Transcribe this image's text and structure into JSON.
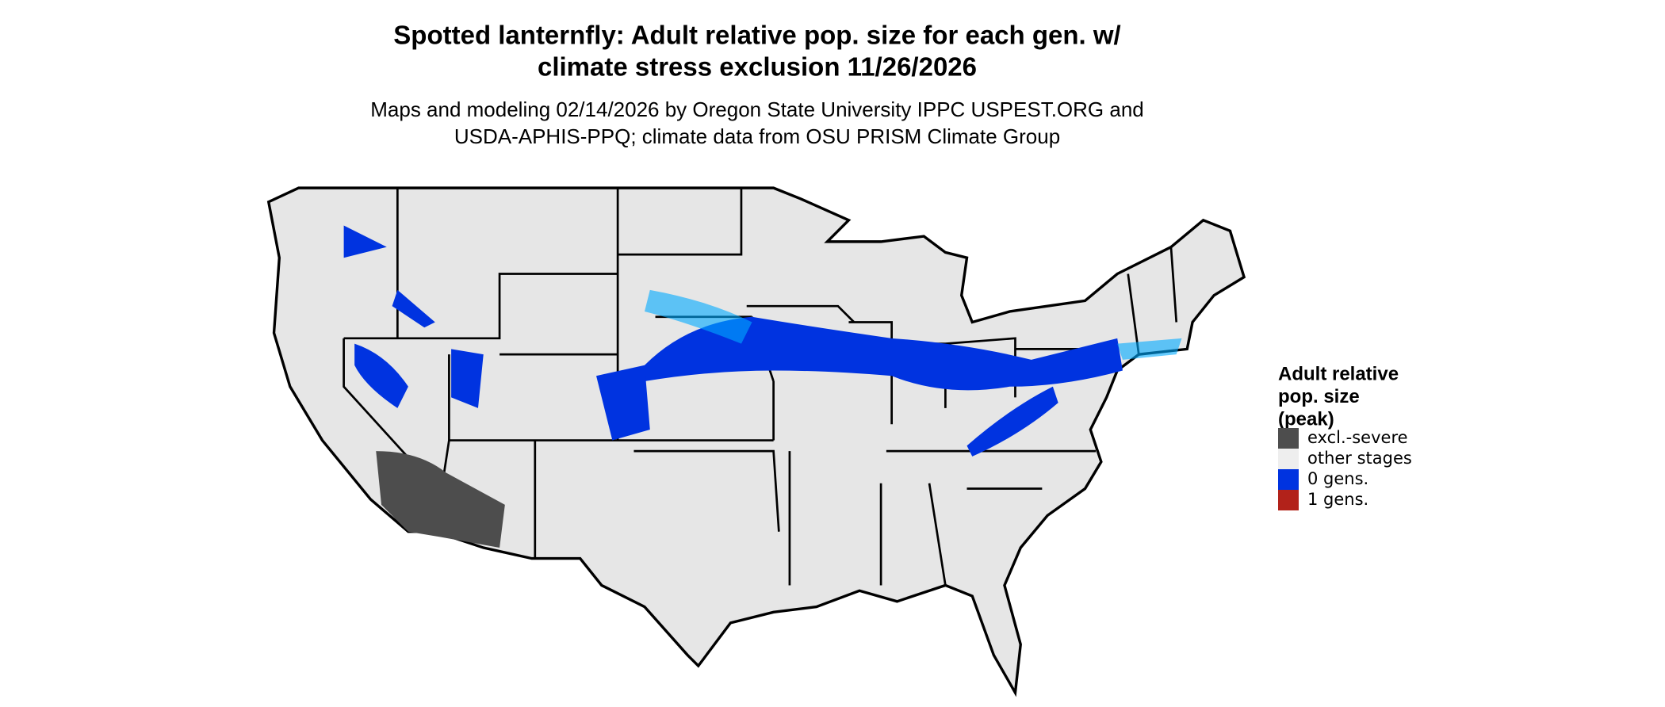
{
  "title": [
    "Spotted lanternfly: Adult relative pop. size for each gen. w/",
    "climate stress exclusion 11/26/2026"
  ],
  "subtitle": [
    "Maps and modeling 02/14/2026 by Oregon State University IPPC USPEST.ORG and",
    "USDA-APHIS-PPQ; climate data from OSU PRISM Climate Group"
  ],
  "legend": {
    "title": [
      "Adult relative",
      "pop. size",
      "(peak)"
    ],
    "items": [
      {
        "label": "excl.-severe",
        "color": "#4d4d4d"
      },
      {
        "label": "other stages",
        "color": "#eeeeee"
      },
      {
        "label": "0 gens.",
        "color": "#0033e0"
      },
      {
        "label": "1 gens.",
        "color": "#b2221a"
      }
    ]
  }
}
